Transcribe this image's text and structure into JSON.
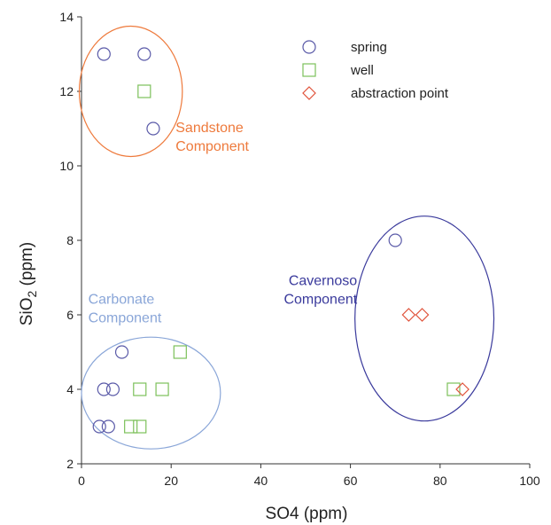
{
  "chart_data": {
    "type": "scatter",
    "xlabel": "SO4 (ppm)",
    "ylabel_main": "SiO",
    "ylabel_sub": "2",
    "ylabel_unit": " (ppm)",
    "xlim": [
      0,
      100
    ],
    "ylim": [
      2,
      14
    ],
    "x_ticks": [
      0,
      20,
      40,
      60,
      80,
      100
    ],
    "x_tick_labels": [
      "0",
      "20",
      "40",
      "60",
      "80",
      "100"
    ],
    "y_ticks": [
      2,
      4,
      6,
      8,
      10,
      12,
      14
    ],
    "y_tick_labels": [
      "2",
      "4",
      "6",
      "8",
      "10",
      "12",
      "14"
    ],
    "grid": false,
    "legend_position": "top-right",
    "series": [
      {
        "name": "spring",
        "marker": "circle",
        "color": "#5a5aa8",
        "points": [
          [
            5,
            13
          ],
          [
            14,
            13
          ],
          [
            16,
            11
          ],
          [
            70,
            8
          ],
          [
            9,
            5
          ],
          [
            5,
            4
          ],
          [
            7,
            4
          ],
          [
            4,
            3
          ],
          [
            6,
            3
          ]
        ]
      },
      {
        "name": "well",
        "marker": "square",
        "color": "#7cc05a",
        "points": [
          [
            14,
            12
          ],
          [
            22,
            5
          ],
          [
            13,
            4
          ],
          [
            18,
            4
          ],
          [
            11,
            3
          ],
          [
            13,
            3
          ],
          [
            83,
            4
          ]
        ]
      },
      {
        "name": "abstraction point",
        "marker": "diamond",
        "color": "#e0523a",
        "points": [
          [
            73,
            6
          ],
          [
            76,
            6
          ],
          [
            85,
            4
          ]
        ]
      }
    ],
    "groups": [
      {
        "label_lines": [
          "Sandstone",
          "Component"
        ],
        "color": "#ee7a3c",
        "ellipse": {
          "cx": 11,
          "cy": 12,
          "rx": 11.5,
          "ry": 1.75
        },
        "label_at": {
          "x": 21,
          "y": 10.9
        },
        "anchor": "start"
      },
      {
        "label_lines": [
          "Carbonate",
          "Component"
        ],
        "color": "#8aa6d8",
        "ellipse": {
          "cx": 15.5,
          "cy": 3.9,
          "rx": 15.5,
          "ry": 1.5
        },
        "label_at": {
          "x": 1.5,
          "y": 6.3
        },
        "anchor": "start"
      },
      {
        "label_lines": [
          "Cavernoso",
          "Component"
        ],
        "color": "#3a3a9c",
        "ellipse": {
          "cx": 76.5,
          "cy": 5.9,
          "rx": 15.5,
          "ry": 2.75
        },
        "label_at": {
          "x": 61.5,
          "y": 6.8
        },
        "anchor": "end"
      }
    ]
  }
}
